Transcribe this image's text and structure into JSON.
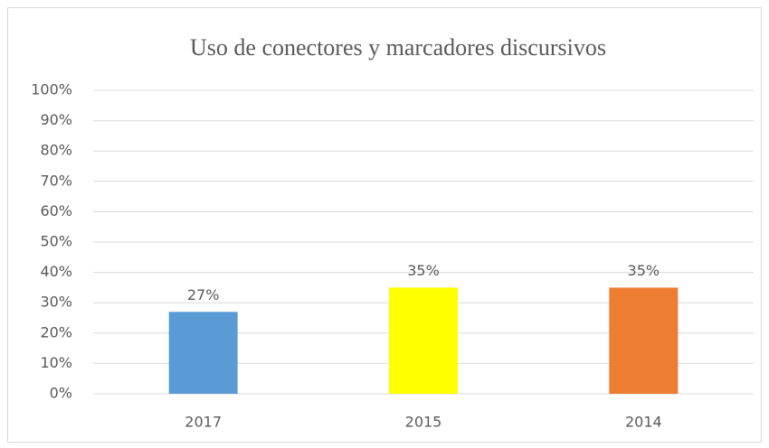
{
  "chart_data": {
    "type": "bar",
    "title": "Uso de conectores y marcadores discursivos",
    "categories": [
      "2017",
      "2015",
      "2014"
    ],
    "values": [
      27,
      35,
      35
    ],
    "value_labels": [
      "27%",
      "35%",
      "35%"
    ],
    "colors": [
      "#5b9bd5",
      "#ffff00",
      "#ed7d31"
    ],
    "ylim": [
      0,
      100
    ],
    "yticks": [
      {
        "value": 0,
        "label": "0%"
      },
      {
        "value": 10,
        "label": "10%"
      },
      {
        "value": 20,
        "label": "20%"
      },
      {
        "value": 30,
        "label": "30%"
      },
      {
        "value": 40,
        "label": "40%"
      },
      {
        "value": 50,
        "label": "50%"
      },
      {
        "value": 60,
        "label": "60%"
      },
      {
        "value": 70,
        "label": "70%"
      },
      {
        "value": 80,
        "label": "80%"
      },
      {
        "value": 90,
        "label": "90%"
      },
      {
        "value": 100,
        "label": "100%"
      }
    ],
    "grid": true
  }
}
